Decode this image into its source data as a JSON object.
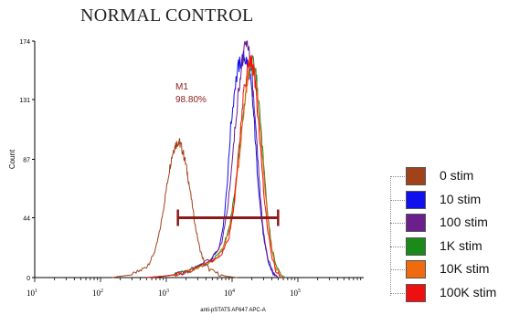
{
  "title": "NORMAL CONTROL",
  "chart_data": {
    "type": "histogram-overlay",
    "title": "NORMAL CONTROL",
    "xlabel": "anti-pSTAT5 AF647 APC-A",
    "ylabel": "Count",
    "x_scale": "log",
    "xlim": [
      10,
      1000000
    ],
    "ylim": [
      0,
      174
    ],
    "x_ticks": [
      {
        "value": 10,
        "base": "10",
        "exp": "1"
      },
      {
        "value": 100,
        "base": "10",
        "exp": "2"
      },
      {
        "value": 1000,
        "base": "10",
        "exp": "3"
      },
      {
        "value": 10000,
        "base": "10",
        "exp": "4"
      },
      {
        "value": 100000,
        "base": "10",
        "exp": "5"
      }
    ],
    "y_ticks": [
      "0",
      "44",
      "87",
      "131",
      "174"
    ],
    "y_tick_values": [
      0,
      44,
      87,
      131,
      174
    ],
    "gate": {
      "name": "M1",
      "percent": "98.80%",
      "x_start": 1500,
      "x_end": 50000,
      "y": 44,
      "color": "#8b1a1a"
    },
    "series": [
      {
        "name": "0 stim",
        "color": "#a0421a",
        "points": [
          [
            150,
            0
          ],
          [
            200,
            1
          ],
          [
            300,
            2
          ],
          [
            400,
            5
          ],
          [
            500,
            8
          ],
          [
            600,
            14
          ],
          [
            700,
            22
          ],
          [
            800,
            35
          ],
          [
            900,
            50
          ],
          [
            1000,
            65
          ],
          [
            1100,
            78
          ],
          [
            1200,
            88
          ],
          [
            1300,
            95
          ],
          [
            1400,
            98
          ],
          [
            1500,
            100
          ],
          [
            1600,
            99
          ],
          [
            1700,
            96
          ],
          [
            1850,
            90
          ],
          [
            2000,
            82
          ],
          [
            2200,
            70
          ],
          [
            2500,
            52
          ],
          [
            2800,
            36
          ],
          [
            3200,
            22
          ],
          [
            3700,
            12
          ],
          [
            4500,
            6
          ],
          [
            6000,
            3
          ],
          [
            8000,
            1
          ],
          [
            12000,
            0
          ]
        ]
      },
      {
        "name": "10 stim",
        "color": "#1010ee",
        "points": [
          [
            500,
            0
          ],
          [
            900,
            1
          ],
          [
            1300,
            2
          ],
          [
            2000,
            4
          ],
          [
            3000,
            8
          ],
          [
            5000,
            14
          ],
          [
            6500,
            24
          ],
          [
            7500,
            42
          ],
          [
            8500,
            72
          ],
          [
            9500,
            110
          ],
          [
            11000,
            140
          ],
          [
            12500,
            155
          ],
          [
            14000,
            160
          ],
          [
            15500,
            162
          ],
          [
            17000,
            158
          ],
          [
            18500,
            150
          ],
          [
            20000,
            135
          ],
          [
            22000,
            110
          ],
          [
            24000,
            80
          ],
          [
            27000,
            50
          ],
          [
            31000,
            25
          ],
          [
            36000,
            10
          ],
          [
            42000,
            3
          ],
          [
            50000,
            0
          ]
        ]
      },
      {
        "name": "100 stim",
        "color": "#6a1f8c",
        "points": [
          [
            500,
            0
          ],
          [
            900,
            1
          ],
          [
            1300,
            2
          ],
          [
            2000,
            4
          ],
          [
            3000,
            8
          ],
          [
            5000,
            14
          ],
          [
            7000,
            26
          ],
          [
            8500,
            50
          ],
          [
            10000,
            85
          ],
          [
            11500,
            118
          ],
          [
            13000,
            145
          ],
          [
            14500,
            160
          ],
          [
            16000,
            170
          ],
          [
            17000,
            174
          ],
          [
            18500,
            165
          ],
          [
            20000,
            148
          ],
          [
            22000,
            120
          ],
          [
            24500,
            88
          ],
          [
            27000,
            58
          ],
          [
            30000,
            32
          ],
          [
            35000,
            14
          ],
          [
            42000,
            4
          ],
          [
            50000,
            0
          ]
        ]
      },
      {
        "name": "1K stim",
        "color": "#1a8a1a",
        "points": [
          [
            500,
            0
          ],
          [
            900,
            1
          ],
          [
            1300,
            2
          ],
          [
            2000,
            4
          ],
          [
            3000,
            8
          ],
          [
            5000,
            12
          ],
          [
            7000,
            20
          ],
          [
            9000,
            36
          ],
          [
            11000,
            62
          ],
          [
            13000,
            95
          ],
          [
            15000,
            125
          ],
          [
            17000,
            145
          ],
          [
            19000,
            155
          ],
          [
            21000,
            158
          ],
          [
            23000,
            150
          ],
          [
            25000,
            132
          ],
          [
            28000,
            105
          ],
          [
            31000,
            75
          ],
          [
            35000,
            45
          ],
          [
            40000,
            22
          ],
          [
            47000,
            8
          ],
          [
            55000,
            2
          ],
          [
            65000,
            0
          ]
        ]
      },
      {
        "name": "10K stim",
        "color": "#f06a10",
        "points": [
          [
            500,
            0
          ],
          [
            900,
            1
          ],
          [
            1300,
            2
          ],
          [
            2000,
            4
          ],
          [
            3000,
            7
          ],
          [
            5000,
            12
          ],
          [
            7000,
            20
          ],
          [
            9000,
            34
          ],
          [
            11000,
            58
          ],
          [
            13000,
            90
          ],
          [
            15000,
            122
          ],
          [
            17000,
            145
          ],
          [
            18500,
            156
          ],
          [
            20000,
            158
          ],
          [
            22000,
            150
          ],
          [
            24000,
            135
          ],
          [
            27000,
            108
          ],
          [
            30000,
            78
          ],
          [
            34000,
            48
          ],
          [
            39000,
            24
          ],
          [
            45000,
            9
          ],
          [
            53000,
            2
          ],
          [
            62000,
            0
          ]
        ]
      },
      {
        "name": "100K stim",
        "color": "#ee1010",
        "points": [
          [
            500,
            0
          ],
          [
            900,
            1
          ],
          [
            1300,
            2
          ],
          [
            2000,
            4
          ],
          [
            3000,
            7
          ],
          [
            5000,
            12
          ],
          [
            7000,
            18
          ],
          [
            9000,
            30
          ],
          [
            10500,
            50
          ],
          [
            12000,
            80
          ],
          [
            13500,
            110
          ],
          [
            15000,
            135
          ],
          [
            16500,
            150
          ],
          [
            18000,
            158
          ],
          [
            19500,
            160
          ],
          [
            21000,
            154
          ],
          [
            23000,
            138
          ],
          [
            25000,
            115
          ],
          [
            28000,
            85
          ],
          [
            31000,
            58
          ],
          [
            35000,
            34
          ],
          [
            40000,
            16
          ],
          [
            46000,
            5
          ],
          [
            55000,
            0
          ]
        ]
      }
    ]
  },
  "legend": {
    "items": [
      {
        "label": "0 stim",
        "color": "#a0421a"
      },
      {
        "label": "10 stim",
        "color": "#1010ee"
      },
      {
        "label": "100 stim",
        "color": "#6a1f8c"
      },
      {
        "label": "1K stim",
        "color": "#1a8a1a"
      },
      {
        "label": "10K stim",
        "color": "#f06a10"
      },
      {
        "label": "100K stim",
        "color": "#ee1010"
      }
    ]
  }
}
